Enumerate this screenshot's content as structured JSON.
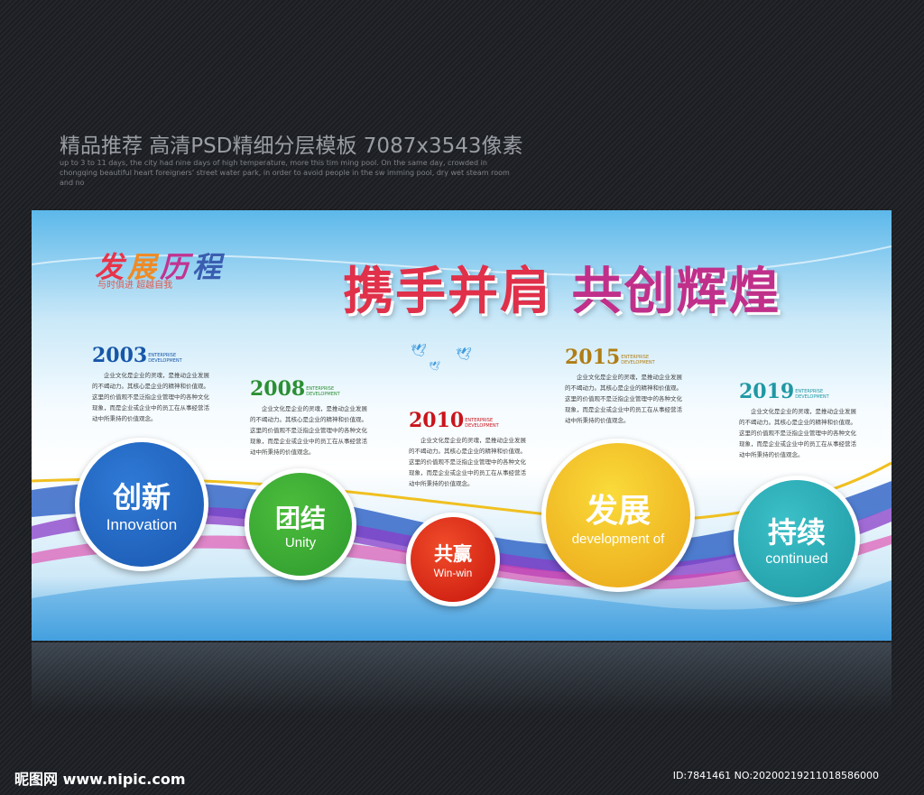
{
  "promo": {
    "title": "精品推荐 高清PSD精细分层模板 7087x3543像素",
    "blurb": "up to 3 to 11 days, the city had nine days of high temperature, more this tim ming pool. On the same day, crowded in chongqing beautiful heart foreigners' street water park, in order to avoid people in the sw imming pool, dry wet steam room and no"
  },
  "board": {
    "logo": {
      "chars": [
        "发",
        "展",
        "历",
        "程"
      ],
      "colors": [
        "#e8344a",
        "#f08a24",
        "#c2338f",
        "#3a5eb0"
      ],
      "slogan": "与时俱进 超越自我"
    },
    "headline": {
      "part1": "携手并肩",
      "part2": "共创辉煌"
    },
    "milestones": [
      {
        "year": "2003",
        "tag": "ENTERPRISE DEVELOPMENT",
        "color": "#1756a8",
        "text": "企业文化是企业的灵魂，是推动企业发展的不竭动力。其核心是企业的精神和价值观。这里的价值观不是泛指企业管理中的各种文化现象，而是企业或企业中的员工在从事经营活动中所秉持的价值观念。"
      },
      {
        "year": "2008",
        "tag": "ENTERPRISE DEVELOPMENT",
        "color": "#2b8f33",
        "text": "企业文化是企业的灵魂，是推动企业发展的不竭动力。其核心是企业的精神和价值观。这里的价值观不是泛指企业管理中的各种文化现象，而是企业或企业中的员工在从事经营活动中所秉持的价值观念。"
      },
      {
        "year": "2010",
        "tag": "ENTERPRISE DEVELOPMENT",
        "color": "#c9141c",
        "text": "企业文化是企业的灵魂，是推动企业发展的不竭动力。其核心是企业的精神和价值观。这里的价值观不是泛指企业管理中的各种文化现象，而是企业或企业中的员工在从事经营活动中所秉持的价值观念。"
      },
      {
        "year": "2015",
        "tag": "ENTERPRISE DEVELOPMENT",
        "color": "#b07d14",
        "text": "企业文化是企业的灵魂，是推动企业发展的不竭动力。其核心是企业的精神和价值观。这里的价值观不是泛指企业管理中的各种文化现象，而是企业或企业中的员工在从事经营活动中所秉持的价值观念。"
      },
      {
        "year": "2019",
        "tag": "ENTERPRISE DEVELOPMENT",
        "color": "#1f98a4",
        "text": "企业文化是企业的灵魂，是推动企业发展的不竭动力。其核心是企业的精神和价值观。这里的价值观不是泛指企业管理中的各种文化现象，而是企业或企业中的员工在从事经营活动中所秉持的价值观念。"
      }
    ],
    "values": [
      {
        "cn": "创新",
        "en": "Innovation",
        "color": "#1a58b0"
      },
      {
        "cn": "团结",
        "en": "Unity",
        "color": "#2e9a2e"
      },
      {
        "cn": "共赢",
        "en": "Win-win",
        "color": "#d4200f"
      },
      {
        "cn": "发展",
        "en": "development of",
        "color": "#f0b41c"
      },
      {
        "cn": "持续",
        "en": "continued",
        "color": "#22a3ad"
      }
    ]
  },
  "footer": {
    "logo": "昵图网 www.nipic.com",
    "id": "ID:7841461 NO:20200219211018586000"
  }
}
